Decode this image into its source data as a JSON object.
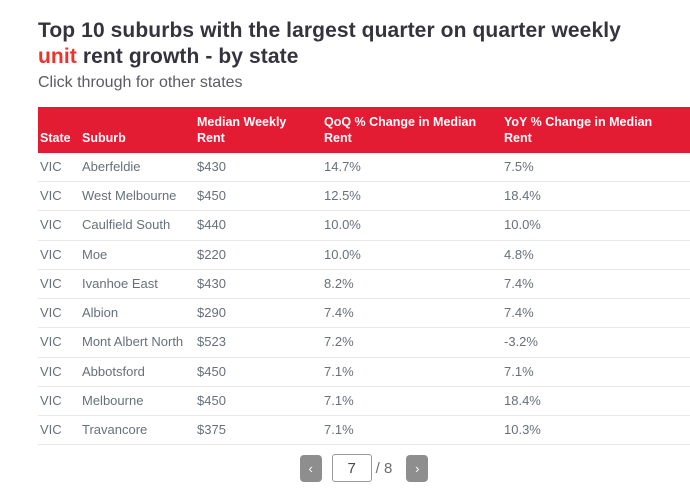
{
  "title": {
    "text_before": "Top 10 suburbs with the largest quarter on quarter weekly ",
    "highlight": "unit",
    "text_after": " rent growth - by state"
  },
  "subtitle": "Click through for other states",
  "colors": {
    "header_background": "#e31c33",
    "title_highlight": "#ef332c",
    "row_text": "#67707b",
    "pager_button": "#8e8e8e"
  },
  "pagination": {
    "prev_icon": "‹",
    "next_icon": "›",
    "current": "7",
    "total_label": "/ 8"
  },
  "chart_data": {
    "type": "table",
    "title": "Top 10 suburbs with the largest quarter on quarter weekly unit rent growth - by state",
    "subtitle": "Click through for other states",
    "columns": [
      "State",
      "Suburb",
      "Median Weekly Rent",
      "QoQ % Change in Median Rent",
      "YoY % Change in Median Rent"
    ],
    "rows": [
      [
        "VIC",
        "Aberfeldie",
        "$430",
        "14.7%",
        "7.5%"
      ],
      [
        "VIC",
        "West Melbourne",
        "$450",
        "12.5%",
        "18.4%"
      ],
      [
        "VIC",
        "Caulfield South",
        "$440",
        "10.0%",
        "10.0%"
      ],
      [
        "VIC",
        "Moe",
        "$220",
        "10.0%",
        "4.8%"
      ],
      [
        "VIC",
        "Ivanhoe East",
        "$430",
        "8.2%",
        "7.4%"
      ],
      [
        "VIC",
        "Albion",
        "$290",
        "7.4%",
        "7.4%"
      ],
      [
        "VIC",
        "Mont Albert North",
        "$523",
        "7.2%",
        "-3.2%"
      ],
      [
        "VIC",
        "Abbotsford",
        "$450",
        "7.1%",
        "7.1%"
      ],
      [
        "VIC",
        "Melbourne",
        "$450",
        "7.1%",
        "18.4%"
      ],
      [
        "VIC",
        "Travancore",
        "$375",
        "7.1%",
        "10.3%"
      ]
    ],
    "page": {
      "current": 7,
      "total": 8
    }
  }
}
